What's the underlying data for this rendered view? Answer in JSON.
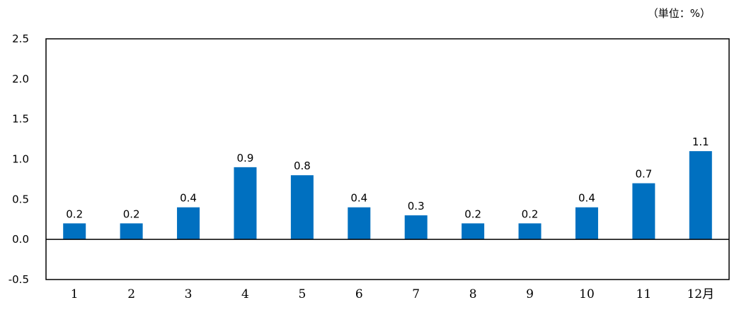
{
  "chart_data": {
    "type": "bar",
    "unit_note": "（単位：%）",
    "categories": [
      "1",
      "2",
      "3",
      "4",
      "5",
      "6",
      "7",
      "8",
      "9",
      "10",
      "11",
      "12月"
    ],
    "values": [
      0.2,
      0.2,
      0.4,
      0.9,
      0.8,
      0.4,
      0.3,
      0.2,
      0.2,
      0.4,
      0.7,
      1.1
    ],
    "data_labels": [
      "0.2",
      "0.2",
      "0.4",
      "0.9",
      "0.8",
      "0.4",
      "0.3",
      "0.2",
      "0.2",
      "0.4",
      "0.7",
      "1.1"
    ],
    "yticks": [
      -0.5,
      0.0,
      0.5,
      1.0,
      1.5,
      2.0,
      2.5
    ],
    "ytick_labels": [
      "-0.5",
      "0.0",
      "0.5",
      "1.0",
      "1.5",
      "2.0",
      "2.5"
    ],
    "ylim": [
      -0.5,
      2.5
    ],
    "grid": false,
    "bar_color": "#0070c0"
  }
}
